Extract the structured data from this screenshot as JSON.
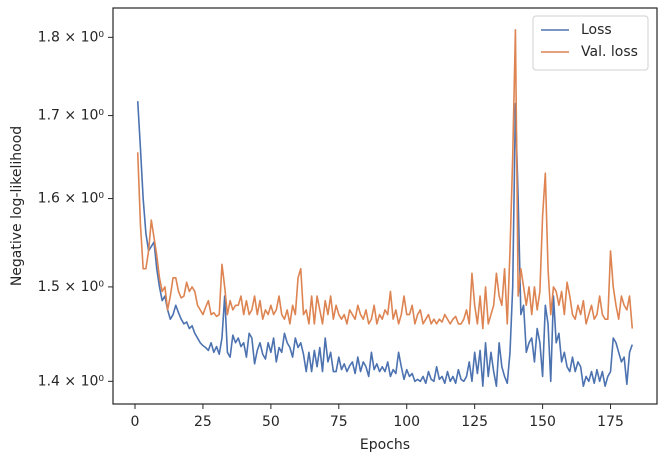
{
  "chart_data": {
    "type": "line",
    "xlabel": "Epochs",
    "ylabel": "Negative log-likelihood",
    "log_y": true,
    "grid": false,
    "legend": "upper right",
    "xlim": [
      -8.1,
      192.1
    ],
    "xticks": [
      0,
      25,
      50,
      75,
      100,
      125,
      150,
      175
    ],
    "ylim": [
      1.377,
      1.839
    ],
    "yticks": [
      {
        "value": 1.4,
        "label": "1.4 × 10⁰"
      },
      {
        "value": 1.5,
        "label": "1.5 × 10⁰"
      },
      {
        "value": 1.6,
        "label": "1.6 × 10⁰"
      },
      {
        "value": 1.7,
        "label": "1.7 × 10⁰"
      },
      {
        "value": 1.8,
        "label": "1.8 × 10⁰"
      }
    ],
    "x": [
      1,
      2,
      3,
      4,
      5,
      6,
      7,
      8,
      9,
      10,
      11,
      12,
      13,
      14,
      15,
      16,
      17,
      18,
      19,
      20,
      21,
      22,
      23,
      24,
      25,
      26,
      27,
      28,
      29,
      30,
      31,
      32,
      33,
      34,
      35,
      36,
      37,
      38,
      39,
      40,
      41,
      42,
      43,
      44,
      45,
      46,
      47,
      48,
      49,
      50,
      51,
      52,
      53,
      54,
      55,
      56,
      57,
      58,
      59,
      60,
      61,
      62,
      63,
      64,
      65,
      66,
      67,
      68,
      69,
      70,
      71,
      72,
      73,
      74,
      75,
      76,
      77,
      78,
      79,
      80,
      81,
      82,
      83,
      84,
      85,
      86,
      87,
      88,
      89,
      90,
      91,
      92,
      93,
      94,
      95,
      96,
      97,
      98,
      99,
      100,
      101,
      102,
      103,
      104,
      105,
      106,
      107,
      108,
      109,
      110,
      111,
      112,
      113,
      114,
      115,
      116,
      117,
      118,
      119,
      120,
      121,
      122,
      123,
      124,
      125,
      126,
      127,
      128,
      129,
      130,
      131,
      132,
      133,
      134,
      135,
      136,
      137,
      138,
      139,
      140,
      141,
      142,
      143,
      144,
      145,
      146,
      147,
      148,
      149,
      150,
      151,
      152,
      153,
      154,
      155,
      156,
      157,
      158,
      159,
      160,
      161,
      162,
      163,
      164,
      165,
      166,
      167,
      168,
      169,
      170,
      171,
      172,
      173,
      174,
      175,
      176,
      177,
      178,
      179,
      180,
      181,
      182,
      183
    ],
    "series": [
      {
        "name": "Loss",
        "color": "#4c72b0",
        "values": [
          1.718,
          1.66,
          1.6,
          1.56,
          1.54,
          1.545,
          1.55,
          1.52,
          1.5,
          1.485,
          1.49,
          1.475,
          1.465,
          1.47,
          1.48,
          1.472,
          1.465,
          1.46,
          1.462,
          1.455,
          1.458,
          1.45,
          1.445,
          1.44,
          1.437,
          1.435,
          1.432,
          1.44,
          1.43,
          1.436,
          1.428,
          1.445,
          1.49,
          1.43,
          1.425,
          1.448,
          1.44,
          1.445,
          1.436,
          1.44,
          1.425,
          1.45,
          1.445,
          1.418,
          1.432,
          1.44,
          1.428,
          1.423,
          1.44,
          1.43,
          1.445,
          1.42,
          1.435,
          1.43,
          1.45,
          1.44,
          1.435,
          1.425,
          1.445,
          1.435,
          1.44,
          1.428,
          1.41,
          1.43,
          1.41,
          1.432,
          1.415,
          1.435,
          1.41,
          1.445,
          1.42,
          1.43,
          1.41,
          1.41,
          1.425,
          1.412,
          1.418,
          1.41,
          1.416,
          1.42,
          1.408,
          1.425,
          1.41,
          1.42,
          1.415,
          1.405,
          1.43,
          1.412,
          1.418,
          1.41,
          1.415,
          1.41,
          1.42,
          1.405,
          1.412,
          1.408,
          1.43,
          1.415,
          1.402,
          1.412,
          1.405,
          1.408,
          1.4,
          1.402,
          1.4,
          1.405,
          1.398,
          1.41,
          1.402,
          1.4,
          1.415,
          1.402,
          1.405,
          1.398,
          1.41,
          1.4,
          1.405,
          1.398,
          1.412,
          1.402,
          1.4,
          1.405,
          1.42,
          1.4,
          1.43,
          1.408,
          1.432,
          1.395,
          1.44,
          1.405,
          1.43,
          1.41,
          1.395,
          1.44,
          1.415,
          1.405,
          1.398,
          1.43,
          1.5,
          1.715,
          1.6,
          1.47,
          1.48,
          1.43,
          1.44,
          1.445,
          1.42,
          1.455,
          1.44,
          1.405,
          1.48,
          1.46,
          1.4,
          1.49,
          1.44,
          1.45,
          1.42,
          1.43,
          1.415,
          1.41,
          1.425,
          1.41,
          1.42,
          1.415,
          1.395,
          1.405,
          1.4,
          1.41,
          1.398,
          1.412,
          1.4,
          1.41,
          1.395,
          1.405,
          1.41,
          1.445,
          1.44,
          1.43,
          1.42,
          1.425,
          1.397,
          1.43,
          1.438
        ]
      },
      {
        "name": "Val. loss",
        "color": "#dd8452",
        "values": [
          1.655,
          1.57,
          1.52,
          1.52,
          1.54,
          1.575,
          1.555,
          1.535,
          1.51,
          1.495,
          1.5,
          1.475,
          1.49,
          1.51,
          1.51,
          1.495,
          1.488,
          1.49,
          1.505,
          1.495,
          1.5,
          1.495,
          1.48,
          1.475,
          1.47,
          1.478,
          1.485,
          1.47,
          1.472,
          1.468,
          1.47,
          1.525,
          1.5,
          1.47,
          1.485,
          1.475,
          1.48,
          1.48,
          1.49,
          1.47,
          1.485,
          1.47,
          1.475,
          1.49,
          1.47,
          1.485,
          1.465,
          1.475,
          1.47,
          1.48,
          1.47,
          1.475,
          1.49,
          1.47,
          1.465,
          1.475,
          1.46,
          1.48,
          1.47,
          1.51,
          1.52,
          1.47,
          1.475,
          1.46,
          1.49,
          1.46,
          1.49,
          1.475,
          1.46,
          1.485,
          1.47,
          1.49,
          1.465,
          1.48,
          1.47,
          1.465,
          1.47,
          1.46,
          1.475,
          1.47,
          1.465,
          1.48,
          1.47,
          1.465,
          1.475,
          1.46,
          1.465,
          1.48,
          1.46,
          1.47,
          1.465,
          1.475,
          1.47,
          1.495,
          1.465,
          1.475,
          1.46,
          1.47,
          1.49,
          1.47,
          1.47,
          1.48,
          1.46,
          1.47,
          1.475,
          1.46,
          1.465,
          1.47,
          1.46,
          1.465,
          1.46,
          1.465,
          1.462,
          1.47,
          1.465,
          1.46,
          1.465,
          1.468,
          1.46,
          1.46,
          1.465,
          1.475,
          1.46,
          1.515,
          1.48,
          1.46,
          1.49,
          1.455,
          1.5,
          1.46,
          1.47,
          1.48,
          1.515,
          1.49,
          1.48,
          1.52,
          1.46,
          1.54,
          1.65,
          1.81,
          1.49,
          1.52,
          1.5,
          1.48,
          1.5,
          1.47,
          1.5,
          1.475,
          1.495,
          1.58,
          1.63,
          1.52,
          1.47,
          1.5,
          1.495,
          1.48,
          1.495,
          1.47,
          1.505,
          1.49,
          1.47,
          1.465,
          1.48,
          1.47,
          1.485,
          1.46,
          1.47,
          1.48,
          1.465,
          1.47,
          1.49,
          1.47,
          1.465,
          1.465,
          1.54,
          1.5,
          1.48,
          1.465,
          1.49,
          1.48,
          1.475,
          1.49,
          1.455
        ]
      }
    ]
  }
}
